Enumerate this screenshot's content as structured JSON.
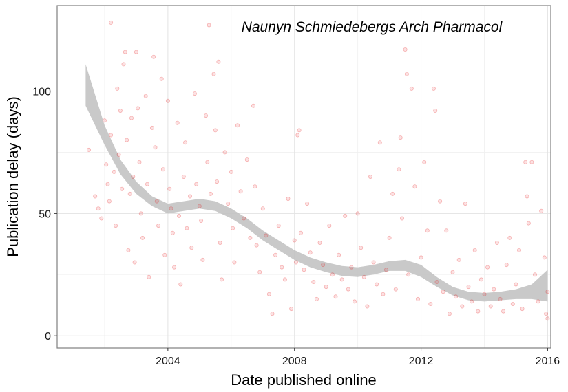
{
  "chart_data": {
    "type": "scatter",
    "title": "",
    "annotation": "Naunyn Schmiedebergs Arch Pharmacol",
    "xlabel": "Date published online",
    "ylabel": "Publication delay (days)",
    "xlim": [
      2000.5,
      2016.1
    ],
    "ylim": [
      -5,
      135
    ],
    "x_ticks": [
      2004,
      2008,
      2012,
      2016
    ],
    "y_ticks": [
      0,
      50,
      100
    ],
    "grid": true,
    "point_color": "#e41a1c",
    "smooth_band_color": "#bfbfbf",
    "trend_ci": {
      "x": [
        2001.4,
        2002.0,
        2002.5,
        2003.0,
        2003.5,
        2004.0,
        2004.5,
        2005.0,
        2005.5,
        2006.0,
        2006.5,
        2007.0,
        2007.5,
        2008.0,
        2008.5,
        2009.0,
        2009.5,
        2010.0,
        2010.5,
        2011.0,
        2011.5,
        2012.0,
        2012.5,
        2013.0,
        2013.5,
        2014.0,
        2014.5,
        2015.0,
        2015.5,
        2016.0
      ],
      "lower": [
        94,
        78,
        66,
        58,
        53,
        50,
        51,
        52,
        51,
        48,
        44,
        39,
        35,
        31,
        28,
        26,
        24.5,
        24,
        25,
        26.5,
        26.5,
        24,
        20,
        16.5,
        14.5,
        14,
        14.5,
        15,
        15,
        14
      ],
      "upper": [
        111,
        86,
        72,
        63,
        57,
        54,
        55,
        56,
        55,
        52,
        48,
        43,
        39,
        35,
        32,
        30,
        28.5,
        28,
        29,
        30.5,
        31,
        29,
        24,
        20,
        18,
        17.5,
        18,
        19,
        21,
        27
      ]
    },
    "points": [
      {
        "x": 2001.5,
        "y": 76
      },
      {
        "x": 2001.7,
        "y": 57
      },
      {
        "x": 2001.8,
        "y": 52
      },
      {
        "x": 2001.9,
        "y": 48
      },
      {
        "x": 2002.0,
        "y": 88
      },
      {
        "x": 2002.05,
        "y": 70
      },
      {
        "x": 2002.1,
        "y": 62
      },
      {
        "x": 2002.15,
        "y": 55
      },
      {
        "x": 2002.2,
        "y": 128
      },
      {
        "x": 2002.2,
        "y": 82
      },
      {
        "x": 2002.3,
        "y": 67
      },
      {
        "x": 2002.35,
        "y": 45
      },
      {
        "x": 2002.4,
        "y": 101
      },
      {
        "x": 2002.45,
        "y": 74
      },
      {
        "x": 2002.5,
        "y": 92
      },
      {
        "x": 2002.55,
        "y": 60
      },
      {
        "x": 2002.6,
        "y": 111
      },
      {
        "x": 2002.65,
        "y": 116
      },
      {
        "x": 2002.7,
        "y": 80
      },
      {
        "x": 2002.75,
        "y": 35
      },
      {
        "x": 2002.8,
        "y": 58
      },
      {
        "x": 2002.85,
        "y": 89
      },
      {
        "x": 2002.9,
        "y": 65
      },
      {
        "x": 2002.95,
        "y": 30
      },
      {
        "x": 2003.0,
        "y": 116
      },
      {
        "x": 2003.05,
        "y": 93
      },
      {
        "x": 2003.1,
        "y": 71
      },
      {
        "x": 2003.15,
        "y": 50
      },
      {
        "x": 2003.2,
        "y": 40
      },
      {
        "x": 2003.3,
        "y": 98
      },
      {
        "x": 2003.35,
        "y": 62
      },
      {
        "x": 2003.4,
        "y": 24
      },
      {
        "x": 2003.5,
        "y": 85
      },
      {
        "x": 2003.55,
        "y": 114
      },
      {
        "x": 2003.6,
        "y": 77
      },
      {
        "x": 2003.65,
        "y": 55
      },
      {
        "x": 2003.7,
        "y": 45
      },
      {
        "x": 2003.8,
        "y": 105
      },
      {
        "x": 2003.85,
        "y": 68
      },
      {
        "x": 2003.9,
        "y": 33
      },
      {
        "x": 2004.0,
        "y": 96
      },
      {
        "x": 2004.05,
        "y": 60
      },
      {
        "x": 2004.1,
        "y": 52
      },
      {
        "x": 2004.15,
        "y": 42
      },
      {
        "x": 2004.2,
        "y": 28
      },
      {
        "x": 2004.3,
        "y": 87
      },
      {
        "x": 2004.35,
        "y": 49
      },
      {
        "x": 2004.4,
        "y": 21
      },
      {
        "x": 2004.5,
        "y": 65
      },
      {
        "x": 2004.55,
        "y": 79
      },
      {
        "x": 2004.6,
        "y": 44
      },
      {
        "x": 2004.7,
        "y": 57
      },
      {
        "x": 2004.75,
        "y": 36
      },
      {
        "x": 2004.85,
        "y": 99
      },
      {
        "x": 2004.9,
        "y": 62
      },
      {
        "x": 2005.0,
        "y": 53
      },
      {
        "x": 2005.05,
        "y": 47
      },
      {
        "x": 2005.1,
        "y": 31
      },
      {
        "x": 2005.2,
        "y": 90
      },
      {
        "x": 2005.25,
        "y": 71
      },
      {
        "x": 2005.3,
        "y": 127
      },
      {
        "x": 2005.35,
        "y": 58
      },
      {
        "x": 2005.45,
        "y": 107
      },
      {
        "x": 2005.5,
        "y": 84
      },
      {
        "x": 2005.55,
        "y": 63
      },
      {
        "x": 2005.6,
        "y": 112
      },
      {
        "x": 2005.65,
        "y": 38
      },
      {
        "x": 2005.7,
        "y": 23
      },
      {
        "x": 2005.8,
        "y": 75
      },
      {
        "x": 2005.9,
        "y": 54
      },
      {
        "x": 2006.0,
        "y": 67
      },
      {
        "x": 2006.05,
        "y": 44
      },
      {
        "x": 2006.1,
        "y": 30
      },
      {
        "x": 2006.2,
        "y": 86
      },
      {
        "x": 2006.3,
        "y": 59
      },
      {
        "x": 2006.4,
        "y": 48
      },
      {
        "x": 2006.5,
        "y": 72
      },
      {
        "x": 2006.6,
        "y": 40
      },
      {
        "x": 2006.7,
        "y": 94
      },
      {
        "x": 2006.75,
        "y": 61
      },
      {
        "x": 2006.8,
        "y": 37
      },
      {
        "x": 2006.9,
        "y": 26
      },
      {
        "x": 2007.0,
        "y": 52
      },
      {
        "x": 2007.1,
        "y": 41
      },
      {
        "x": 2007.2,
        "y": 17
      },
      {
        "x": 2007.3,
        "y": 9
      },
      {
        "x": 2007.4,
        "y": 33
      },
      {
        "x": 2007.5,
        "y": 45
      },
      {
        "x": 2007.6,
        "y": 28
      },
      {
        "x": 2007.7,
        "y": 23
      },
      {
        "x": 2007.8,
        "y": 56
      },
      {
        "x": 2007.9,
        "y": 11
      },
      {
        "x": 2008.0,
        "y": 39
      },
      {
        "x": 2008.05,
        "y": 30
      },
      {
        "x": 2008.1,
        "y": 82
      },
      {
        "x": 2008.15,
        "y": 84
      },
      {
        "x": 2008.2,
        "y": 42
      },
      {
        "x": 2008.3,
        "y": 27
      },
      {
        "x": 2008.4,
        "y": 54
      },
      {
        "x": 2008.5,
        "y": 34
      },
      {
        "x": 2008.6,
        "y": 22
      },
      {
        "x": 2008.7,
        "y": 15
      },
      {
        "x": 2008.8,
        "y": 38
      },
      {
        "x": 2008.9,
        "y": 29
      },
      {
        "x": 2009.0,
        "y": 20
      },
      {
        "x": 2009.1,
        "y": 45
      },
      {
        "x": 2009.2,
        "y": 25
      },
      {
        "x": 2009.3,
        "y": 16
      },
      {
        "x": 2009.4,
        "y": 33
      },
      {
        "x": 2009.5,
        "y": 23
      },
      {
        "x": 2009.6,
        "y": 49
      },
      {
        "x": 2009.7,
        "y": 19
      },
      {
        "x": 2009.8,
        "y": 28
      },
      {
        "x": 2009.9,
        "y": 14
      },
      {
        "x": 2010.0,
        "y": 50
      },
      {
        "x": 2010.1,
        "y": 36
      },
      {
        "x": 2010.2,
        "y": 24
      },
      {
        "x": 2010.3,
        "y": 12
      },
      {
        "x": 2010.4,
        "y": 65
      },
      {
        "x": 2010.5,
        "y": 30
      },
      {
        "x": 2010.6,
        "y": 21
      },
      {
        "x": 2010.7,
        "y": 79
      },
      {
        "x": 2010.8,
        "y": 17
      },
      {
        "x": 2010.9,
        "y": 27
      },
      {
        "x": 2011.0,
        "y": 40
      },
      {
        "x": 2011.1,
        "y": 58
      },
      {
        "x": 2011.2,
        "y": 19
      },
      {
        "x": 2011.3,
        "y": 68
      },
      {
        "x": 2011.35,
        "y": 81
      },
      {
        "x": 2011.4,
        "y": 48
      },
      {
        "x": 2011.5,
        "y": 117
      },
      {
        "x": 2011.55,
        "y": 107
      },
      {
        "x": 2011.6,
        "y": 25
      },
      {
        "x": 2011.7,
        "y": 101
      },
      {
        "x": 2011.8,
        "y": 61
      },
      {
        "x": 2011.9,
        "y": 15
      },
      {
        "x": 2012.0,
        "y": 32
      },
      {
        "x": 2012.1,
        "y": 71
      },
      {
        "x": 2012.2,
        "y": 43
      },
      {
        "x": 2012.3,
        "y": 13
      },
      {
        "x": 2012.4,
        "y": 101
      },
      {
        "x": 2012.45,
        "y": 92
      },
      {
        "x": 2012.5,
        "y": 22
      },
      {
        "x": 2012.6,
        "y": 55
      },
      {
        "x": 2012.7,
        "y": 18
      },
      {
        "x": 2012.8,
        "y": 43
      },
      {
        "x": 2012.9,
        "y": 9
      },
      {
        "x": 2013.0,
        "y": 26
      },
      {
        "x": 2013.1,
        "y": 16
      },
      {
        "x": 2013.2,
        "y": 31
      },
      {
        "x": 2013.3,
        "y": 12
      },
      {
        "x": 2013.4,
        "y": 54
      },
      {
        "x": 2013.5,
        "y": 20
      },
      {
        "x": 2013.6,
        "y": 14
      },
      {
        "x": 2013.7,
        "y": 35
      },
      {
        "x": 2013.8,
        "y": 10
      },
      {
        "x": 2013.9,
        "y": 23
      },
      {
        "x": 2014.0,
        "y": 17
      },
      {
        "x": 2014.1,
        "y": 28
      },
      {
        "x": 2014.2,
        "y": 12
      },
      {
        "x": 2014.3,
        "y": 19
      },
      {
        "x": 2014.4,
        "y": 38
      },
      {
        "x": 2014.5,
        "y": 15
      },
      {
        "x": 2014.6,
        "y": 10
      },
      {
        "x": 2014.7,
        "y": 29
      },
      {
        "x": 2014.8,
        "y": 40
      },
      {
        "x": 2014.9,
        "y": 13
      },
      {
        "x": 2015.0,
        "y": 21
      },
      {
        "x": 2015.1,
        "y": 35
      },
      {
        "x": 2015.2,
        "y": 11
      },
      {
        "x": 2015.3,
        "y": 71
      },
      {
        "x": 2015.35,
        "y": 57
      },
      {
        "x": 2015.4,
        "y": 46
      },
      {
        "x": 2015.5,
        "y": 71
      },
      {
        "x": 2015.6,
        "y": 25
      },
      {
        "x": 2015.7,
        "y": 14
      },
      {
        "x": 2015.8,
        "y": 51
      },
      {
        "x": 2015.9,
        "y": 32
      },
      {
        "x": 2015.95,
        "y": 9
      },
      {
        "x": 2016.0,
        "y": 18
      },
      {
        "x": 2016.0,
        "y": 7
      }
    ]
  }
}
